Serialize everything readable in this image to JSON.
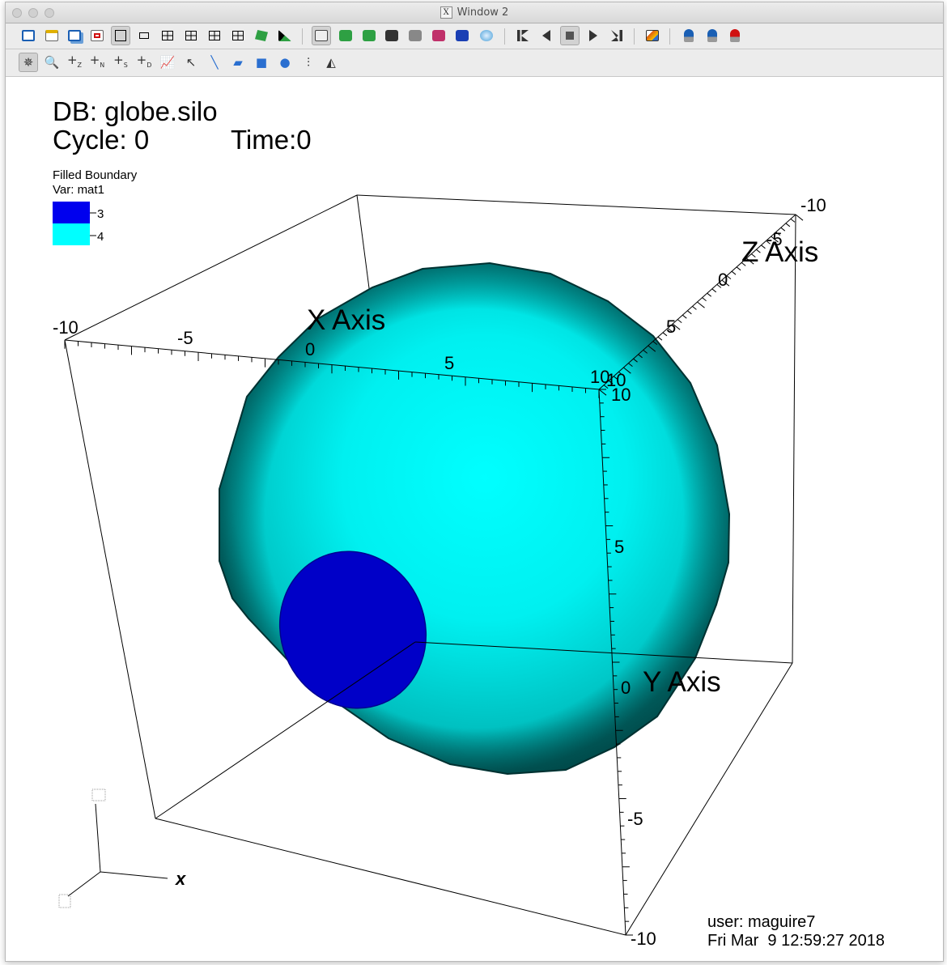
{
  "window": {
    "title": "Window 2",
    "x_logo": "X"
  },
  "toolbar1": {
    "buttons": [
      {
        "name": "active-window-icon",
        "color": "#1a5fb4"
      },
      {
        "name": "new-window-icon",
        "color": "#e0b000"
      },
      {
        "name": "clone-window-icon",
        "color": "#1a5fb4"
      },
      {
        "name": "delete-window-icon",
        "color": "#d01010"
      },
      {
        "name": "layout-1x1-icon",
        "color": "#000000"
      },
      {
        "name": "layout-1x2-icon",
        "color": "#000000"
      },
      {
        "name": "layout-2x2-icon",
        "color": "#000000"
      },
      {
        "name": "layout-2x3-icon",
        "color": "#000000"
      },
      {
        "name": "layout-2x4-icon",
        "color": "#000000"
      },
      {
        "name": "layout-3x3-icon",
        "color": "#000000"
      },
      {
        "name": "lock-view-icon",
        "color": "#2ea043"
      },
      {
        "name": "lock-tools-icon",
        "color": "#2ea043"
      },
      {
        "name": "view-3d-icon",
        "color": "#444444"
      },
      {
        "name": "camera-green-icon",
        "color": "#2ea043"
      },
      {
        "name": "camera-hide-icon",
        "color": "#2ea043"
      },
      {
        "name": "camera-plot-icon",
        "color": "#333333"
      },
      {
        "name": "camera-gray-icon",
        "color": "#888888"
      },
      {
        "name": "camera-red-icon",
        "color": "#c0306a"
      },
      {
        "name": "camera-blue-icon",
        "color": "#1a3fb4"
      },
      {
        "name": "reset-view-icon",
        "color": "#4aa0d8"
      },
      {
        "name": "rewind-icon",
        "color": "#333333"
      },
      {
        "name": "step-back-icon",
        "color": "#333333"
      },
      {
        "name": "stop-icon",
        "color": "#555555"
      },
      {
        "name": "play-icon",
        "color": "#333333"
      },
      {
        "name": "step-forward-icon",
        "color": "#333333"
      },
      {
        "name": "spreadsheet-icon",
        "color": "#e05a10"
      },
      {
        "name": "pick-icon",
        "color": "#1a5fb4"
      },
      {
        "name": "pick-add-icon",
        "color": "#1a5fb4"
      },
      {
        "name": "pick-clear-icon",
        "color": "#d01010"
      }
    ]
  },
  "toolbar2": {
    "buttons": [
      {
        "name": "navigate-mode-icon",
        "glyph": "✵"
      },
      {
        "name": "zoom-mode-icon",
        "glyph": "🔍"
      },
      {
        "name": "zone-pick-icon",
        "glyph": "+",
        "sub": "Z"
      },
      {
        "name": "node-pick-icon",
        "glyph": "+",
        "sub": "N"
      },
      {
        "name": "spreadsheet-pick-icon",
        "glyph": "+",
        "sub": "S"
      },
      {
        "name": "domain-pick-icon",
        "glyph": "+",
        "sub": "D"
      },
      {
        "name": "curve-pick-icon",
        "glyph": "📈"
      },
      {
        "name": "lineout-icon",
        "glyph": "↖"
      },
      {
        "name": "line-tool-icon",
        "glyph": "╲"
      },
      {
        "name": "plane-tool-icon",
        "glyph": "▰"
      },
      {
        "name": "box-tool-icon",
        "glyph": "■"
      },
      {
        "name": "sphere-tool-icon",
        "glyph": "●"
      },
      {
        "name": "point-tool-icon",
        "glyph": "⫶"
      },
      {
        "name": "extents-tool-icon",
        "glyph": "◭"
      }
    ]
  },
  "annotation": {
    "db": "DB: globe.silo",
    "cycle": "Cycle: 0",
    "time": "Time:0",
    "legend_title": "Filled Boundary",
    "legend_var": "Var: mat1",
    "legend_items": [
      {
        "label": "3",
        "color": "#0000ee"
      },
      {
        "label": "4",
        "color": "#00ffff"
      }
    ],
    "user": "user: maguire7",
    "date": "Fri Mar  9 12:59:27 2018",
    "triad_x": "x"
  },
  "axes": {
    "x_title": "X Axis",
    "y_title": "Y Axis",
    "z_title": "Z Axis",
    "x_ticks": [
      "-10",
      "-5",
      "0",
      "5",
      "10"
    ],
    "y_ticks": [
      "10",
      "5",
      "0",
      "-5",
      "-10"
    ],
    "z_ticks": [
      "-10",
      "-5",
      "0",
      "5",
      "10"
    ]
  },
  "colors": {
    "sphere_outer": "#00c4c4",
    "sphere_inner": "#00ffff",
    "sphere_edge": "#003c3c",
    "patch": "#0000c8"
  }
}
